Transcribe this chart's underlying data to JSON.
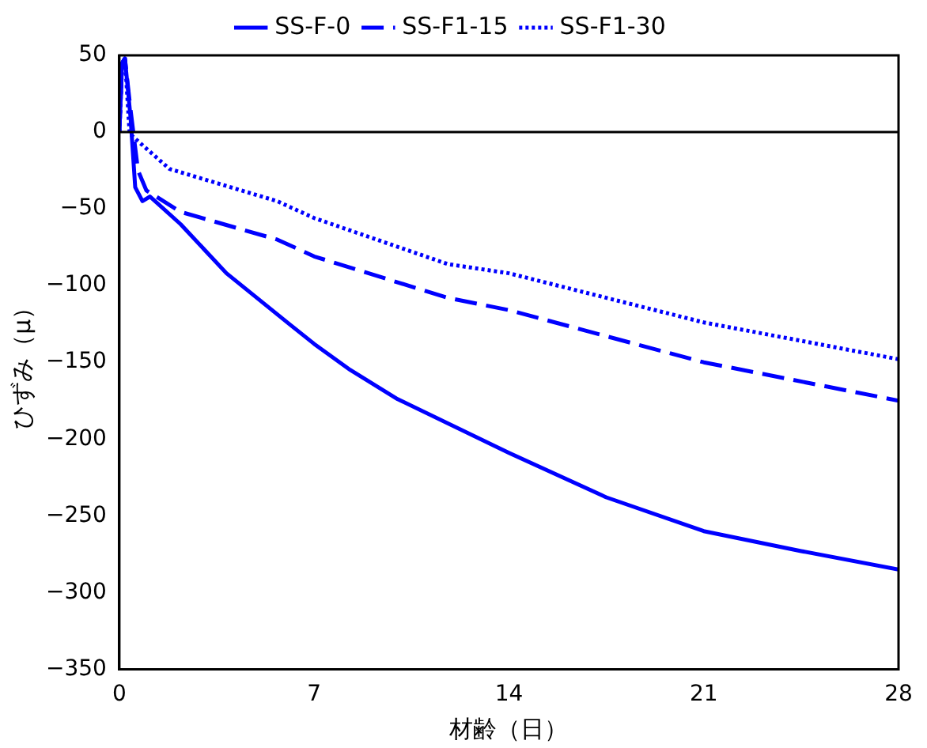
{
  "chart_data": {
    "type": "line",
    "xlabel": "材齢（日）",
    "ylabel": "ひずみ（μ）",
    "xlim": [
      0,
      28
    ],
    "xticks": [
      0,
      7,
      14,
      21,
      28
    ],
    "ylim": [
      -350,
      50
    ],
    "yticks": [
      -350,
      -300,
      -250,
      -200,
      -150,
      -100,
      -50,
      0,
      50
    ],
    "grid": false,
    "legend": "top",
    "marker": "none",
    "ref_lines": [
      {
        "axis": "y",
        "value": 0,
        "color": "#000000"
      }
    ],
    "series": [
      {
        "name": "SS-F-0",
        "color": "#0000ff",
        "line_style": "solid",
        "x": [
          0,
          0.1,
          0.2,
          0.4,
          0.57,
          0.83,
          1.1,
          2.2,
          3.85,
          6.1,
          7,
          8.3,
          10,
          14,
          17.5,
          21,
          24.5,
          28
        ],
        "values": [
          0,
          45,
          48,
          10,
          -36,
          -45,
          -42,
          -60,
          -92,
          -125,
          -138,
          -155,
          -174,
          -209,
          -238,
          -260,
          -273,
          -285
        ]
      },
      {
        "name": "SS-F1-15",
        "color": "#0000ff",
        "line_style": "dashed",
        "x": [
          0,
          0.1,
          0.2,
          0.4,
          0.67,
          0.97,
          2.2,
          5.67,
          7,
          11.8,
          14,
          21,
          28
        ],
        "values": [
          0,
          45,
          48,
          15,
          -25,
          -38,
          -52,
          -70,
          -81,
          -108,
          -116,
          -150,
          -175
        ]
      },
      {
        "name": "SS-F1-30",
        "color": "#0000ff",
        "line_style": "dotted",
        "x": [
          0,
          0.1,
          0.2,
          0.37,
          0.8,
          1.8,
          5.67,
          7,
          11.8,
          14,
          21,
          28
        ],
        "values": [
          0,
          45,
          48,
          -1,
          -8,
          -24,
          -45,
          -56,
          -86,
          -92,
          -124,
          -148
        ]
      }
    ]
  }
}
